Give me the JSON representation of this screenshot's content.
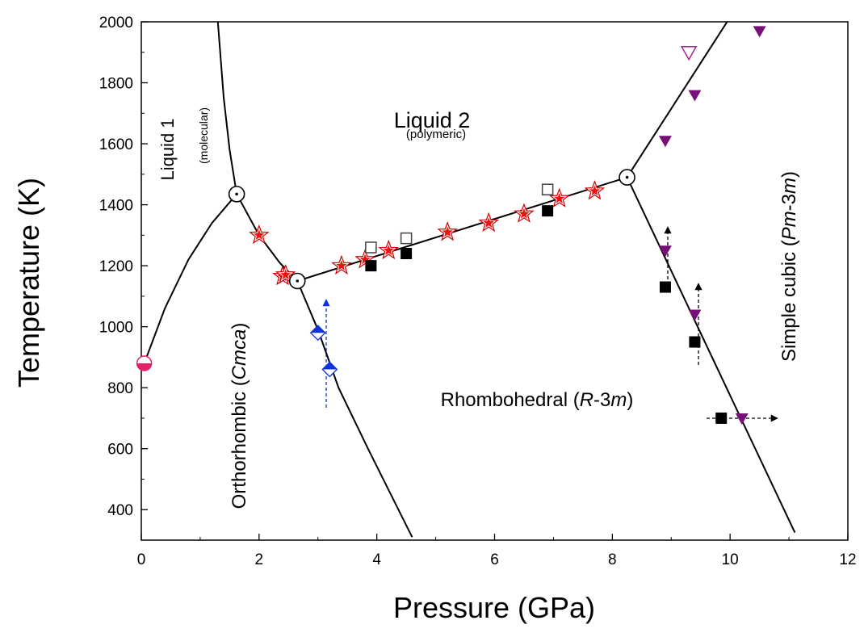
{
  "chart_data": {
    "type": "scatter",
    "x_label": "Pressure (GPa)",
    "y_label": "Temperature (K)",
    "xlim": [
      0,
      12
    ],
    "ylim": [
      300,
      2000
    ],
    "xticks": [
      0,
      2,
      4,
      6,
      8,
      10,
      12
    ],
    "yticks": [
      400,
      600,
      800,
      1000,
      1200,
      1400,
      1600,
      1800,
      2000
    ],
    "annotations": [
      {
        "parts": [
          "Liquid 1"
        ]
      },
      {
        "parts": [
          "(molecular)"
        ]
      },
      {
        "parts": [
          "Liquid 2"
        ]
      },
      {
        "parts": [
          "(polymeric)"
        ]
      },
      {
        "parts": [
          "Orthorhombic (",
          "Cmca",
          ")"
        ]
      },
      {
        "parts": [
          "Rhombohedral (",
          "R",
          "-3",
          "m",
          ")"
        ]
      },
      {
        "parts": [
          "Simple cubic (",
          "Pm",
          "-3",
          "m",
          ")"
        ]
      }
    ],
    "lines": [
      {
        "color": "#000",
        "x": [
          1.3,
          1.4,
          1.5,
          1.62
        ],
        "y": [
          2000,
          1750,
          1580,
          1435
        ]
      },
      {
        "color": "#000",
        "x": [
          0.05,
          0.4,
          0.8,
          1.2,
          1.62
        ],
        "y": [
          880,
          1060,
          1220,
          1340,
          1435
        ]
      },
      {
        "color": "#000",
        "x": [
          1.62,
          2.0,
          2.35,
          2.65
        ],
        "y": [
          1435,
          1300,
          1210,
          1150
        ]
      },
      {
        "color": "#000",
        "x": [
          2.65,
          3.0,
          3.35,
          3.85,
          4.6
        ],
        "y": [
          1150,
          990,
          800,
          600,
          310
        ]
      },
      {
        "color": "#000",
        "x": [
          2.65,
          8.25
        ],
        "y": [
          1150,
          1490
        ]
      },
      {
        "color": "#000",
        "x": [
          8.25,
          9.95
        ],
        "y": [
          1490,
          2000
        ]
      },
      {
        "color": "#000",
        "x": [
          8.25,
          11.1
        ],
        "y": [
          1490,
          325
        ]
      }
    ],
    "series": [
      {
        "marker": "star",
        "color": "#ee1111",
        "x": [
          2.0,
          2.4,
          2.45,
          3.4,
          3.8,
          4.2,
          5.2,
          5.9,
          6.5,
          7.1,
          7.7
        ],
        "y": [
          1300,
          1165,
          1170,
          1200,
          1220,
          1250,
          1310,
          1340,
          1370,
          1420,
          1445
        ]
      },
      {
        "marker": "square-open",
        "color": "#444444",
        "x": [
          3.9,
          4.5,
          6.9
        ],
        "y": [
          1260,
          1290,
          1450
        ]
      },
      {
        "marker": "square",
        "color": "#000000",
        "x": [
          3.9,
          4.5,
          6.9,
          8.9,
          9.4,
          9.85
        ],
        "y": [
          1200,
          1240,
          1380,
          1130,
          950,
          700
        ]
      },
      {
        "marker": "triangle",
        "color": "#771177",
        "x": [
          8.9,
          9.4,
          10.5,
          8.9,
          9.4,
          10.2
        ],
        "y": [
          1610,
          1760,
          1970,
          1250,
          1040,
          700
        ]
      },
      {
        "marker": "triangle-open",
        "color": "#aa2288",
        "x": [
          9.3
        ],
        "y": [
          1900
        ]
      },
      {
        "marker": "diamond-half",
        "color": "#1133dd",
        "x": [
          3.0,
          3.2
        ],
        "y": [
          980,
          860
        ]
      },
      {
        "marker": "circle-half",
        "color": "#e0206a",
        "x": [
          0.05
        ],
        "y": [
          880
        ]
      },
      {
        "marker": "triple",
        "color": "#000000",
        "x": [
          1.62,
          2.65,
          8.25
        ],
        "y": [
          1435,
          1150,
          1490
        ]
      }
    ]
  }
}
